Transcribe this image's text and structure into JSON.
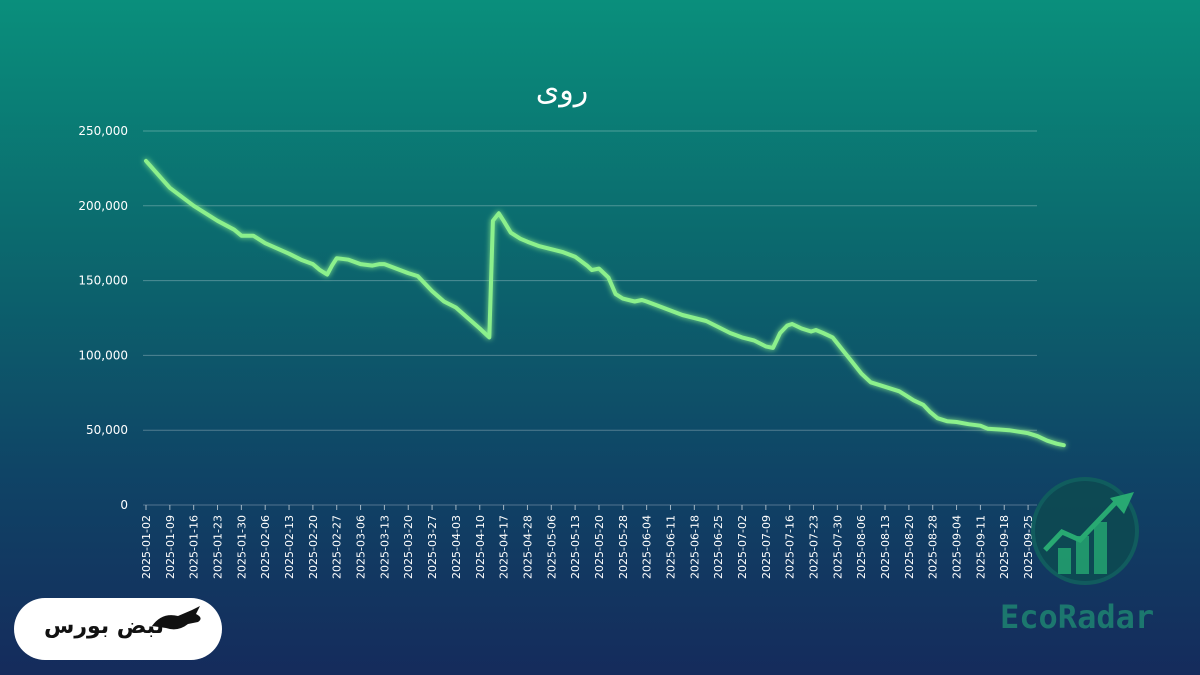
{
  "chart_data": {
    "type": "line",
    "title": "روی",
    "xlabel": "",
    "ylabel": "",
    "ylim": [
      0,
      250000
    ],
    "yticks": [
      0,
      50000,
      100000,
      150000,
      200000,
      250000
    ],
    "ytick_labels": [
      "0",
      "50,000",
      "100,000",
      "150,000",
      "200,000",
      "250,000"
    ],
    "grid": true,
    "legend": "none",
    "line_color": "#8cf08c",
    "xtick_labels": [
      "2025-01-02",
      "2025-01-09",
      "2025-01-16",
      "2025-01-23",
      "2025-01-30",
      "2025-02-06",
      "2025-02-13",
      "2025-02-20",
      "2025-02-27",
      "2025-03-06",
      "2025-03-13",
      "2025-03-20",
      "2025-03-27",
      "2025-04-03",
      "2025-04-10",
      "2025-04-17",
      "2025-04-28",
      "2025-05-06",
      "2025-05-13",
      "2025-05-20",
      "2025-05-28",
      "2025-06-04",
      "2025-06-11",
      "2025-06-18",
      "2025-06-25",
      "2025-07-02",
      "2025-07-09",
      "2025-07-16",
      "2025-07-23",
      "2025-07-30",
      "2025-08-06",
      "2025-08-13",
      "2025-08-20",
      "2025-08-28",
      "2025-09-04",
      "2025-09-11",
      "2025-09-18",
      "2025-09-25"
    ],
    "series": [
      {
        "values": [
          [
            0,
            230000
          ],
          [
            1,
            212000
          ],
          [
            2,
            200000
          ],
          [
            3,
            190000
          ],
          [
            3.7,
            184000
          ],
          [
            4,
            180000
          ],
          [
            4.5,
            180000
          ],
          [
            5,
            175000
          ],
          [
            6,
            168000
          ],
          [
            6.5,
            164000
          ],
          [
            7,
            161000
          ],
          [
            7.3,
            157000
          ],
          [
            7.6,
            154000
          ],
          [
            7.8,
            160000
          ],
          [
            8,
            165000
          ],
          [
            8.5,
            164000
          ],
          [
            9,
            161000
          ],
          [
            9.5,
            160000
          ],
          [
            9.8,
            161000
          ],
          [
            10,
            161000
          ],
          [
            10.5,
            158000
          ],
          [
            11,
            155000
          ],
          [
            11.4,
            153000
          ],
          [
            12,
            143000
          ],
          [
            12.5,
            136000
          ],
          [
            13,
            132000
          ],
          [
            13.5,
            125000
          ],
          [
            14,
            118000
          ],
          [
            14.4,
            112000
          ],
          [
            14.55,
            190000
          ],
          [
            14.8,
            195000
          ],
          [
            15,
            190000
          ],
          [
            15.3,
            182000
          ],
          [
            15.7,
            178000
          ],
          [
            16,
            176000
          ],
          [
            16.5,
            173000
          ],
          [
            17,
            171000
          ],
          [
            17.5,
            169000
          ],
          [
            18,
            166000
          ],
          [
            18.5,
            160000
          ],
          [
            18.7,
            157000
          ],
          [
            19,
            158000
          ],
          [
            19.4,
            152000
          ],
          [
            19.7,
            141000
          ],
          [
            20,
            138000
          ],
          [
            20.5,
            136000
          ],
          [
            20.8,
            137000
          ],
          [
            21,
            136000
          ],
          [
            21.5,
            133000
          ],
          [
            22,
            130000
          ],
          [
            22.5,
            127000
          ],
          [
            23,
            125000
          ],
          [
            23.5,
            123000
          ],
          [
            24,
            119000
          ],
          [
            24.5,
            115000
          ],
          [
            25,
            112000
          ],
          [
            25.5,
            110000
          ],
          [
            26,
            106000
          ],
          [
            26.3,
            105000
          ],
          [
            26.6,
            115000
          ],
          [
            26.9,
            120000
          ],
          [
            27.1,
            121000
          ],
          [
            27.5,
            118000
          ],
          [
            27.9,
            116000
          ],
          [
            28.1,
            117000
          ],
          [
            28.4,
            115000
          ],
          [
            28.8,
            112000
          ],
          [
            29.2,
            104000
          ],
          [
            29.6,
            96000
          ],
          [
            30,
            88000
          ],
          [
            30.4,
            82000
          ],
          [
            30.8,
            80000
          ],
          [
            31.2,
            78000
          ],
          [
            31.6,
            76000
          ],
          [
            31.9,
            73000
          ],
          [
            32.2,
            70000
          ],
          [
            32.6,
            67000
          ],
          [
            32.9,
            62000
          ],
          [
            33.2,
            58000
          ],
          [
            33.6,
            56000
          ],
          [
            34,
            55500
          ],
          [
            34.5,
            54000
          ],
          [
            35,
            53000
          ],
          [
            35.3,
            51000
          ],
          [
            35.8,
            50500
          ],
          [
            36.2,
            50000
          ],
          [
            36.6,
            49000
          ],
          [
            37,
            48000
          ],
          [
            37.4,
            46000
          ],
          [
            37.8,
            43000
          ],
          [
            38.2,
            41000
          ],
          [
            38.5,
            40000
          ]
        ]
      }
    ]
  },
  "watermarks": {
    "left_logo_text": "نبض بورس",
    "left_logo_icon": "bull-icon",
    "right_logo_text": "EcoRadar",
    "right_logo_icon": "growth-chart-icon"
  }
}
